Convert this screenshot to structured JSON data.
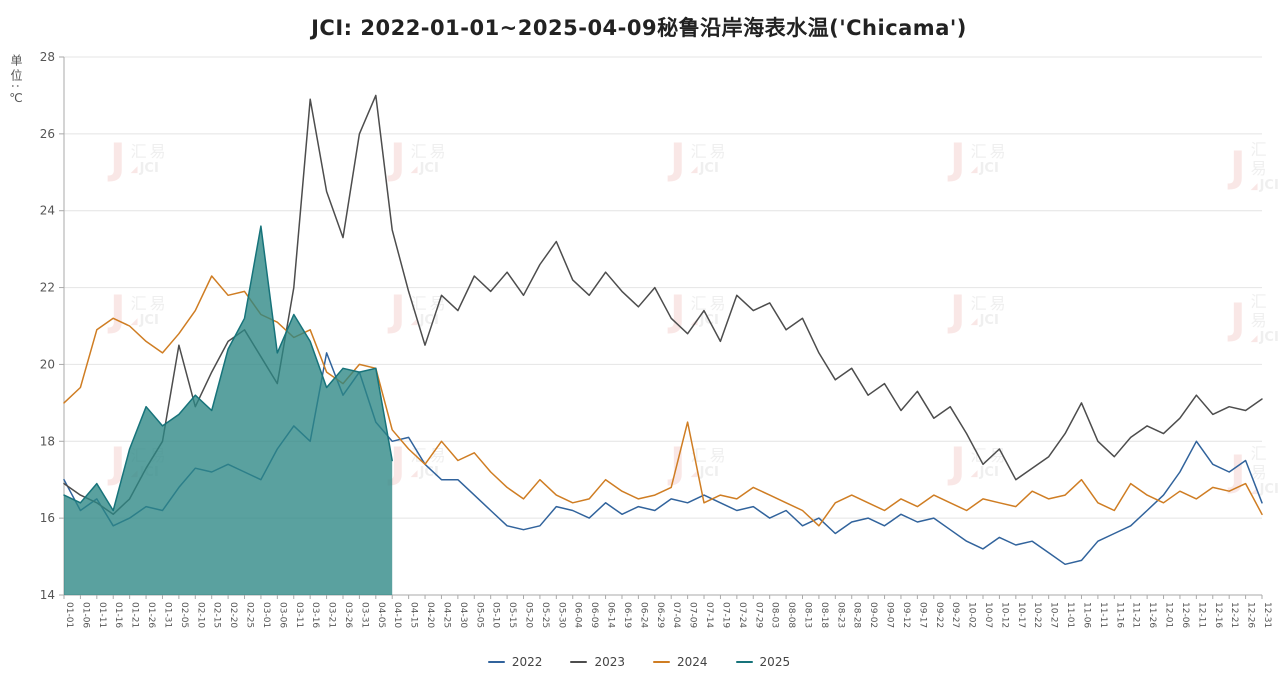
{
  "title": "JCI: 2022-01-01~2025-04-09秘鲁沿岸海表水温('Chicama')",
  "y_axis_title": "单位:℃",
  "watermark": {
    "logo": "J",
    "line1": "汇易",
    "line2": "JCI",
    "accent_color": "#d94b43",
    "text_color": "#8a8a8a"
  },
  "colors": {
    "s2022": "#31639c",
    "s2023": "#4d4d4d",
    "s2024": "#cf7d23",
    "s2025": "#17737a",
    "fill2025": "rgba(44,134,132,0.78)",
    "grid": "#e4e4e4",
    "axis": "#aaaaaa",
    "tick_text": "#555555"
  },
  "chart_data": {
    "type": "line",
    "title": "JCI: 2022-01-01~2025-04-09秘鲁沿岸海表水温('Chicama')",
    "ylabel": "单位:℃",
    "ylim": [
      14,
      28
    ],
    "y_ticks": [
      14,
      16,
      18,
      20,
      22,
      24,
      26,
      28
    ],
    "grid": true,
    "legend_position": "bottom",
    "x": [
      "01-01",
      "01-06",
      "01-11",
      "01-16",
      "01-21",
      "01-26",
      "01-31",
      "02-05",
      "02-10",
      "02-15",
      "02-20",
      "02-25",
      "03-01",
      "03-06",
      "03-11",
      "03-16",
      "03-21",
      "03-26",
      "03-31",
      "04-05",
      "04-10",
      "04-15",
      "04-20",
      "04-25",
      "04-30",
      "05-05",
      "05-10",
      "05-15",
      "05-20",
      "05-25",
      "05-30",
      "06-04",
      "06-09",
      "06-14",
      "06-19",
      "06-24",
      "06-29",
      "07-04",
      "07-09",
      "07-14",
      "07-19",
      "07-24",
      "07-29",
      "08-03",
      "08-08",
      "08-13",
      "08-18",
      "08-23",
      "08-28",
      "09-02",
      "09-07",
      "09-12",
      "09-17",
      "09-22",
      "09-27",
      "10-02",
      "10-07",
      "10-12",
      "10-17",
      "10-22",
      "10-27",
      "11-01",
      "11-06",
      "11-11",
      "11-16",
      "11-21",
      "11-26",
      "12-01",
      "12-06",
      "12-11",
      "12-16",
      "12-21",
      "12-26",
      "12-31"
    ],
    "series": [
      {
        "name": "2022",
        "color": "#31639c",
        "values": [
          17.0,
          16.2,
          16.5,
          15.8,
          16.0,
          16.3,
          16.2,
          16.8,
          17.3,
          17.2,
          17.4,
          17.2,
          17.0,
          17.8,
          18.4,
          18.0,
          20.3,
          19.2,
          19.8,
          18.5,
          18.0,
          18.1,
          17.4,
          17.0,
          17.0,
          16.6,
          16.2,
          15.8,
          15.7,
          15.8,
          16.3,
          16.2,
          16.0,
          16.4,
          16.1,
          16.3,
          16.2,
          16.5,
          16.4,
          16.6,
          16.4,
          16.2,
          16.3,
          16.0,
          16.2,
          15.8,
          16.0,
          15.6,
          15.9,
          16.0,
          15.8,
          16.1,
          15.9,
          16.0,
          15.7,
          15.4,
          15.2,
          15.5,
          15.3,
          15.4,
          15.1,
          14.8,
          14.9,
          15.4,
          15.6,
          15.8,
          16.2,
          16.6,
          17.2,
          18.0,
          17.4,
          17.2,
          17.5,
          16.4
        ]
      },
      {
        "name": "2023",
        "color": "#4d4d4d",
        "values": [
          16.9,
          16.6,
          16.4,
          16.1,
          16.5,
          17.3,
          18.0,
          20.5,
          18.9,
          19.8,
          20.6,
          20.9,
          20.2,
          19.5,
          22.0,
          26.9,
          24.5,
          23.3,
          26.0,
          27.0,
          23.5,
          21.9,
          20.5,
          21.8,
          21.4,
          22.3,
          21.9,
          22.4,
          21.8,
          22.6,
          23.2,
          22.2,
          21.8,
          22.4,
          21.9,
          21.5,
          22.0,
          21.2,
          20.8,
          21.4,
          20.6,
          21.8,
          21.4,
          21.6,
          20.9,
          21.2,
          20.3,
          19.6,
          19.9,
          19.2,
          19.5,
          18.8,
          19.3,
          18.6,
          18.9,
          18.2,
          17.4,
          17.8,
          17.0,
          17.3,
          17.6,
          18.2,
          19.0,
          18.0,
          17.6,
          18.1,
          18.4,
          18.2,
          18.6,
          19.2,
          18.7,
          18.9,
          18.8,
          19.1
        ]
      },
      {
        "name": "2024",
        "color": "#cf7d23",
        "values": [
          19.0,
          19.4,
          20.9,
          21.2,
          21.0,
          20.6,
          20.3,
          20.8,
          21.4,
          22.3,
          21.8,
          21.9,
          21.3,
          21.1,
          20.7,
          20.9,
          19.8,
          19.5,
          20.0,
          19.9,
          18.3,
          17.8,
          17.4,
          18.0,
          17.5,
          17.7,
          17.2,
          16.8,
          16.5,
          17.0,
          16.6,
          16.4,
          16.5,
          17.0,
          16.7,
          16.5,
          16.6,
          16.8,
          18.5,
          16.4,
          16.6,
          16.5,
          16.8,
          16.6,
          16.4,
          16.2,
          15.8,
          16.4,
          16.6,
          16.4,
          16.2,
          16.5,
          16.3,
          16.6,
          16.4,
          16.2,
          16.5,
          16.4,
          16.3,
          16.7,
          16.5,
          16.6,
          17.0,
          16.4,
          16.2,
          16.9,
          16.6,
          16.4,
          16.7,
          16.5,
          16.8,
          16.7,
          16.9,
          16.1
        ]
      },
      {
        "name": "2025",
        "color": "#17737a",
        "area": true,
        "fill": "rgba(44,134,132,0.78)",
        "values": [
          16.6,
          16.4,
          16.9,
          16.2,
          17.8,
          18.9,
          18.4,
          18.7,
          19.2,
          18.8,
          20.4,
          21.2,
          23.6,
          20.3,
          21.3,
          20.6,
          19.4,
          19.9,
          19.8,
          19.9,
          17.5
        ]
      }
    ]
  }
}
